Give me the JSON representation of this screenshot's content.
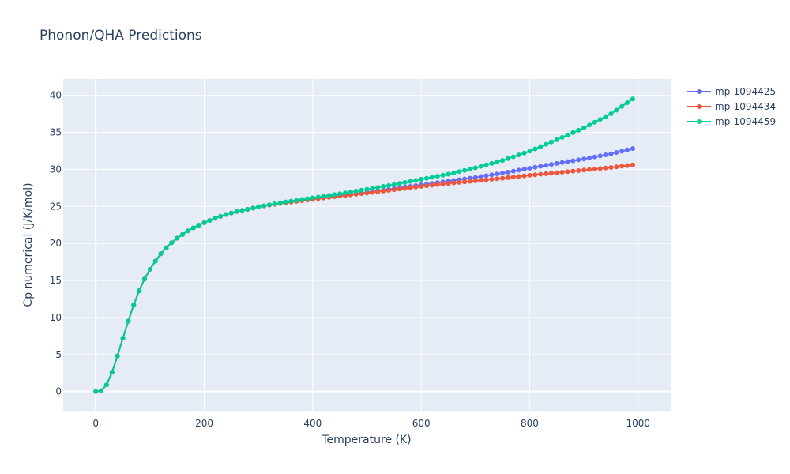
{
  "chart_data": {
    "type": "line",
    "title": "Phonon/QHA Predictions",
    "xlabel": "Temperature (K)",
    "ylabel": "Cp numerical (J/K/mol)",
    "xlim": [
      -60,
      1060
    ],
    "ylim": [
      -2.6,
      42.2
    ],
    "x_ticks": [
      0,
      200,
      400,
      600,
      800,
      1000
    ],
    "y_ticks": [
      0,
      5,
      10,
      15,
      20,
      25,
      30,
      35,
      40
    ],
    "grid": true,
    "legend_position": "top-right",
    "plot_background": "#e5ecf6",
    "x_start": 0,
    "x_step": 10,
    "x_count": 100,
    "series": [
      {
        "name": "mp-1094425",
        "color": "#636efa",
        "anchors": [
          [
            0,
            0
          ],
          [
            10,
            0.1
          ],
          [
            20,
            0.9
          ],
          [
            30,
            2.6
          ],
          [
            40,
            4.8
          ],
          [
            50,
            7.2
          ],
          [
            60,
            9.5
          ],
          [
            70,
            11.7
          ],
          [
            80,
            13.6
          ],
          [
            90,
            15.2
          ],
          [
            100,
            16.5
          ],
          [
            110,
            17.6
          ],
          [
            120,
            18.6
          ],
          [
            130,
            19.4
          ],
          [
            140,
            20.1
          ],
          [
            150,
            20.7
          ],
          [
            160,
            21.2
          ],
          [
            170,
            21.7
          ],
          [
            180,
            22.1
          ],
          [
            200,
            22.8
          ],
          [
            220,
            23.4
          ],
          [
            240,
            23.9
          ],
          [
            260,
            24.3
          ],
          [
            280,
            24.6
          ],
          [
            300,
            24.95
          ],
          [
            350,
            25.55
          ],
          [
            400,
            26.0
          ],
          [
            450,
            26.45
          ],
          [
            500,
            26.9
          ],
          [
            550,
            27.4
          ],
          [
            600,
            27.9
          ],
          [
            650,
            28.4
          ],
          [
            700,
            28.9
          ],
          [
            750,
            29.5
          ],
          [
            800,
            30.15
          ],
          [
            850,
            30.8
          ],
          [
            900,
            31.4
          ],
          [
            950,
            32.1
          ],
          [
            990,
            32.8
          ]
        ]
      },
      {
        "name": "mp-1094434",
        "color": "#ef553b",
        "anchors": [
          [
            0,
            0
          ],
          [
            10,
            0.1
          ],
          [
            20,
            0.9
          ],
          [
            30,
            2.6
          ],
          [
            40,
            4.8
          ],
          [
            50,
            7.2
          ],
          [
            60,
            9.5
          ],
          [
            70,
            11.7
          ],
          [
            80,
            13.6
          ],
          [
            90,
            15.2
          ],
          [
            100,
            16.5
          ],
          [
            110,
            17.6
          ],
          [
            120,
            18.6
          ],
          [
            130,
            19.4
          ],
          [
            140,
            20.1
          ],
          [
            150,
            20.7
          ],
          [
            160,
            21.2
          ],
          [
            170,
            21.7
          ],
          [
            180,
            22.1
          ],
          [
            200,
            22.8
          ],
          [
            220,
            23.4
          ],
          [
            240,
            23.9
          ],
          [
            260,
            24.3
          ],
          [
            280,
            24.6
          ],
          [
            300,
            24.95
          ],
          [
            350,
            25.5
          ],
          [
            400,
            25.95
          ],
          [
            450,
            26.4
          ],
          [
            500,
            26.8
          ],
          [
            550,
            27.25
          ],
          [
            600,
            27.7
          ],
          [
            650,
            28.1
          ],
          [
            700,
            28.45
          ],
          [
            750,
            28.8
          ],
          [
            800,
            29.2
          ],
          [
            850,
            29.55
          ],
          [
            900,
            29.9
          ],
          [
            950,
            30.25
          ],
          [
            990,
            30.6
          ]
        ]
      },
      {
        "name": "mp-1094459",
        "color": "#00cc96",
        "anchors": [
          [
            0,
            0
          ],
          [
            10,
            0.1
          ],
          [
            20,
            0.9
          ],
          [
            30,
            2.6
          ],
          [
            40,
            4.8
          ],
          [
            50,
            7.2
          ],
          [
            60,
            9.5
          ],
          [
            70,
            11.7
          ],
          [
            80,
            13.6
          ],
          [
            90,
            15.2
          ],
          [
            100,
            16.5
          ],
          [
            110,
            17.6
          ],
          [
            120,
            18.6
          ],
          [
            130,
            19.4
          ],
          [
            140,
            20.1
          ],
          [
            150,
            20.7
          ],
          [
            160,
            21.2
          ],
          [
            170,
            21.7
          ],
          [
            180,
            22.1
          ],
          [
            200,
            22.8
          ],
          [
            220,
            23.4
          ],
          [
            240,
            23.9
          ],
          [
            260,
            24.3
          ],
          [
            280,
            24.6
          ],
          [
            300,
            24.95
          ],
          [
            350,
            25.6
          ],
          [
            400,
            26.15
          ],
          [
            450,
            26.7
          ],
          [
            500,
            27.3
          ],
          [
            550,
            27.95
          ],
          [
            600,
            28.65
          ],
          [
            650,
            29.35
          ],
          [
            700,
            30.2
          ],
          [
            750,
            31.2
          ],
          [
            800,
            32.45
          ],
          [
            850,
            34.0
          ],
          [
            900,
            35.6
          ],
          [
            950,
            37.5
          ],
          [
            990,
            39.5
          ]
        ]
      }
    ]
  }
}
